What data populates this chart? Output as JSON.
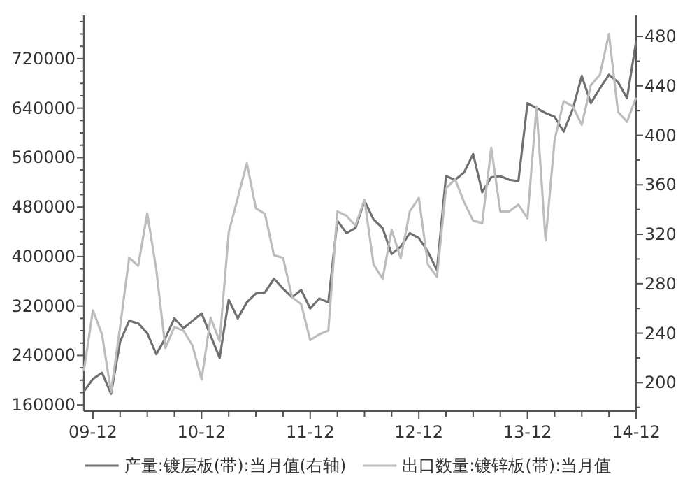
{
  "chart_data": {
    "type": "line",
    "x": [
      "2009-11",
      "2009-12",
      "2010-01",
      "2010-02",
      "2010-03",
      "2010-04",
      "2010-05",
      "2010-06",
      "2010-07",
      "2010-08",
      "2010-09",
      "2010-10",
      "2010-11",
      "2010-12",
      "2011-01",
      "2011-02",
      "2011-03",
      "2011-04",
      "2011-05",
      "2011-06",
      "2011-07",
      "2011-08",
      "2011-09",
      "2011-10",
      "2011-11",
      "2011-12",
      "2012-01",
      "2012-02",
      "2012-03",
      "2012-04",
      "2012-05",
      "2012-06",
      "2012-07",
      "2012-08",
      "2012-09",
      "2012-10",
      "2012-11",
      "2012-12",
      "2013-01",
      "2013-02",
      "2013-03",
      "2013-04",
      "2013-05",
      "2013-06",
      "2013-07",
      "2013-08",
      "2013-09",
      "2013-10",
      "2013-11",
      "2013-12",
      "2014-01",
      "2014-02",
      "2014-03",
      "2014-04",
      "2014-05",
      "2014-06",
      "2014-07",
      "2014-08",
      "2014-09",
      "2014-10",
      "2014-11",
      "2014-12"
    ],
    "series": [
      {
        "name": "产量:镀层板(带):当月值(右轴)",
        "color": "#707070",
        "axis": "y2",
        "values": [
          193,
          203,
          208,
          191,
          233,
          250,
          248,
          240,
          223,
          236,
          252,
          244,
          250,
          256,
          238,
          220,
          267,
          252,
          265,
          272,
          273,
          284,
          276,
          269,
          275,
          260,
          268,
          265,
          331,
          321,
          325,
          347,
          332,
          325,
          304,
          310,
          321,
          317,
          306,
          291,
          367,
          364,
          370,
          385,
          354,
          366,
          367,
          364,
          363,
          426,
          422,
          418,
          415,
          403,
          421,
          448,
          426,
          438,
          449,
          443,
          430,
          476
        ]
      },
      {
        "name": "出口数量:镀锌板(带):当月值",
        "color": "#bdbdbd",
        "values": [
          215000,
          313000,
          274000,
          181000,
          286000,
          398000,
          385000,
          470000,
          379000,
          252000,
          286000,
          280000,
          256000,
          201000,
          301000,
          263000,
          439000,
          495000,
          551000,
          478000,
          469000,
          402000,
          398000,
          334000,
          323000,
          265000,
          274000,
          280000,
          473000,
          466000,
          450000,
          492000,
          387000,
          364000,
          443000,
          397000,
          473000,
          495000,
          387000,
          367000,
          510000,
          525000,
          488000,
          458000,
          454000,
          576000,
          473000,
          473000,
          484000,
          462000,
          642000,
          426000,
          589000,
          651000,
          643000,
          613000,
          677000,
          694000,
          760000,
          634000,
          618000,
          657000
        ]
      }
    ],
    "xlim": [
      "2009-11",
      "2014-12"
    ],
    "xticks": [
      {
        "value": "2009-12",
        "label": "09-12"
      },
      {
        "value": "2010-03",
        "label": null
      },
      {
        "value": "2010-06",
        "label": null
      },
      {
        "value": "2010-09",
        "label": null
      },
      {
        "value": "2010-12",
        "label": "10-12"
      },
      {
        "value": "2011-03",
        "label": null
      },
      {
        "value": "2011-06",
        "label": null
      },
      {
        "value": "2011-09",
        "label": null
      },
      {
        "value": "2011-12",
        "label": "11-12"
      },
      {
        "value": "2012-03",
        "label": null
      },
      {
        "value": "2012-06",
        "label": null
      },
      {
        "value": "2012-09",
        "label": null
      },
      {
        "value": "2012-12",
        "label": "12-12"
      },
      {
        "value": "2013-03",
        "label": null
      },
      {
        "value": "2013-06",
        "label": null
      },
      {
        "value": "2013-09",
        "label": null
      },
      {
        "value": "2013-12",
        "label": "13-12"
      },
      {
        "value": "2014-03",
        "label": null
      },
      {
        "value": "2014-06",
        "label": null
      },
      {
        "value": "2014-09",
        "label": null
      },
      {
        "value": "2014-12",
        "label": "14-12"
      }
    ],
    "ylim": [
      150000,
      790000
    ],
    "yticks": [
      160000,
      {
        "value": 180000,
        "label": null
      },
      {
        "value": 200000,
        "label": null
      },
      {
        "value": 220000,
        "label": null
      },
      240000,
      {
        "value": 260000,
        "label": null
      },
      {
        "value": 280000,
        "label": null
      },
      {
        "value": 300000,
        "label": null
      },
      320000,
      {
        "value": 340000,
        "label": null
      },
      {
        "value": 360000,
        "label": null
      },
      {
        "value": 380000,
        "label": null
      },
      400000,
      {
        "value": 420000,
        "label": null
      },
      {
        "value": 440000,
        "label": null
      },
      {
        "value": 460000,
        "label": null
      },
      480000,
      {
        "value": 500000,
        "label": null
      },
      {
        "value": 520000,
        "label": null
      },
      {
        "value": 540000,
        "label": null
      },
      560000,
      {
        "value": 580000,
        "label": null
      },
      {
        "value": 600000,
        "label": null
      },
      {
        "value": 620000,
        "label": null
      },
      640000,
      {
        "value": 660000,
        "label": null
      },
      {
        "value": 680000,
        "label": null
      },
      {
        "value": 700000,
        "label": null
      },
      720000,
      {
        "value": 740000,
        "label": null
      },
      {
        "value": 760000,
        "label": null
      },
      {
        "value": 780000,
        "label": null
      }
    ],
    "y2lim": [
      177,
      497
    ],
    "y2ticks": [
      {
        "value": 180,
        "label": null
      },
      200,
      {
        "value": 220,
        "label": null
      },
      240,
      {
        "value": 260,
        "label": null
      },
      280,
      {
        "value": 300,
        "label": null
      },
      320,
      {
        "value": 340,
        "label": null
      },
      360,
      {
        "value": 380,
        "label": null
      },
      400,
      {
        "value": 420,
        "label": null
      },
      440,
      {
        "value": 460,
        "label": null
      },
      480
    ],
    "grid": false,
    "legend": "bottom"
  }
}
